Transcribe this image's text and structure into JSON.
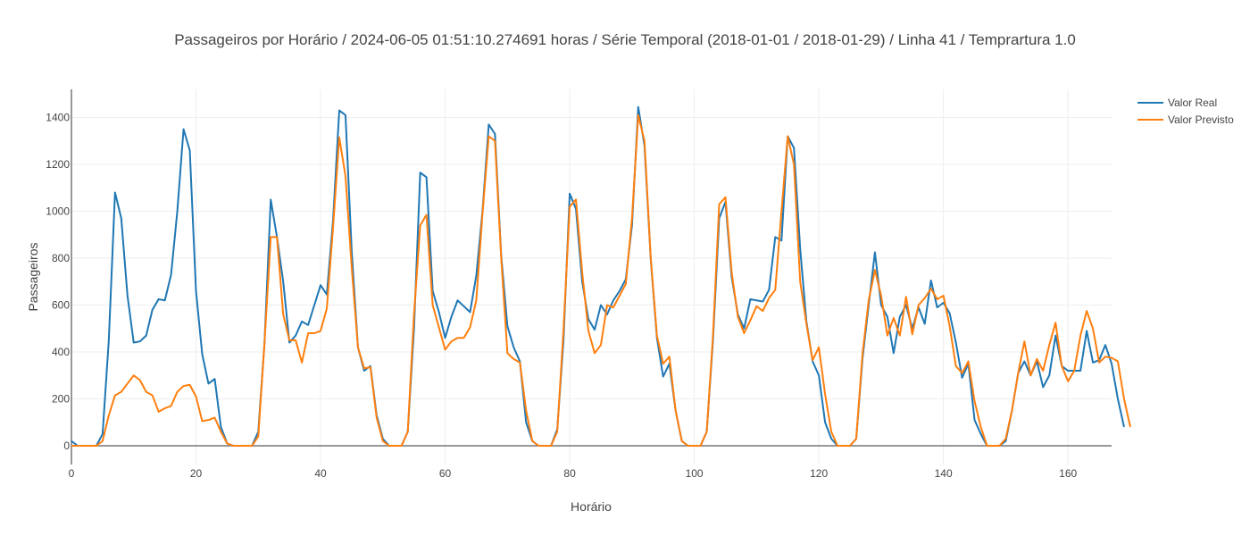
{
  "chart_data": {
    "type": "line",
    "title": "Passageiros por Horário / 2024-06-05 01:51:10.274691 horas / Série Temporal (2018-01-01 / 2018-01-29) / Linha 41 / Temprartura 1.0",
    "xlabel": "Horário",
    "ylabel": "Passageiros",
    "xlim": [
      0,
      167
    ],
    "ylim": [
      -80,
      1520
    ],
    "xticks": [
      0,
      20,
      40,
      60,
      80,
      100,
      120,
      140,
      160
    ],
    "yticks": [
      0,
      200,
      400,
      600,
      800,
      1000,
      1200,
      1400
    ],
    "grid": true,
    "legend_position": "top-right",
    "series": [
      {
        "name": "Valor Real",
        "color": "#1f77b4",
        "values": [
          20,
          0,
          0,
          0,
          0,
          50,
          450,
          1080,
          970,
          640,
          440,
          445,
          470,
          580,
          625,
          620,
          730,
          1000,
          1350,
          1260,
          660,
          390,
          265,
          285,
          80,
          10,
          0,
          0,
          0,
          0,
          60,
          440,
          1050,
          890,
          700,
          440,
          470,
          530,
          515,
          600,
          685,
          645,
          960,
          1430,
          1410,
          830,
          420,
          320,
          340,
          130,
          30,
          0,
          0,
          0,
          60,
          500,
          1165,
          1145,
          660,
          570,
          460,
          550,
          620,
          595,
          570,
          725,
          1000,
          1370,
          1330,
          810,
          510,
          420,
          360,
          100,
          20,
          0,
          0,
          0,
          70,
          450,
          1075,
          1010,
          700,
          540,
          495,
          600,
          560,
          620,
          660,
          710,
          940,
          1445,
          1280,
          800,
          460,
          295,
          350,
          150,
          20,
          0,
          0,
          0,
          60,
          450,
          970,
          1040,
          720,
          560,
          500,
          625,
          620,
          615,
          665,
          890,
          875,
          1320,
          1270,
          840,
          530,
          360,
          300,
          100,
          30,
          0,
          0,
          0,
          30,
          370,
          600,
          825,
          600,
          550,
          395,
          550,
          600,
          500,
          590,
          520,
          705,
          590,
          610,
          565,
          440,
          290,
          350,
          110,
          50,
          0,
          0,
          0,
          20,
          150,
          310,
          360,
          300,
          360,
          250,
          300,
          470,
          340,
          320,
          320,
          320,
          490,
          355,
          365,
          430,
          350,
          200,
          80
        ]
      },
      {
        "name": "Valor Previsto",
        "color": "#ff7f0e",
        "values": [
          0,
          0,
          0,
          0,
          0,
          20,
          130,
          215,
          230,
          265,
          300,
          280,
          230,
          215,
          145,
          160,
          170,
          230,
          255,
          260,
          210,
          105,
          110,
          120,
          60,
          10,
          0,
          0,
          0,
          0,
          40,
          440,
          890,
          890,
          560,
          450,
          450,
          355,
          480,
          480,
          490,
          585,
          930,
          1315,
          1150,
          760,
          420,
          330,
          335,
          120,
          20,
          0,
          0,
          0,
          60,
          560,
          940,
          985,
          600,
          505,
          410,
          445,
          460,
          460,
          505,
          620,
          990,
          1320,
          1300,
          800,
          395,
          370,
          355,
          150,
          20,
          0,
          0,
          0,
          60,
          495,
          1020,
          1050,
          740,
          490,
          395,
          430,
          600,
          590,
          640,
          690,
          970,
          1410,
          1300,
          805,
          470,
          350,
          380,
          150,
          20,
          0,
          0,
          0,
          60,
          470,
          1030,
          1060,
          740,
          550,
          480,
          535,
          595,
          575,
          630,
          665,
          1000,
          1320,
          1200,
          700,
          520,
          365,
          420,
          220,
          60,
          0,
          0,
          0,
          30,
          390,
          620,
          750,
          640,
          470,
          545,
          470,
          635,
          475,
          600,
          630,
          670,
          625,
          640,
          510,
          340,
          310,
          360,
          190,
          80,
          0,
          0,
          0,
          30,
          150,
          310,
          445,
          300,
          370,
          320,
          430,
          525,
          340,
          275,
          320,
          470,
          575,
          500,
          355,
          380,
          375,
          360,
          200,
          80
        ]
      }
    ]
  }
}
